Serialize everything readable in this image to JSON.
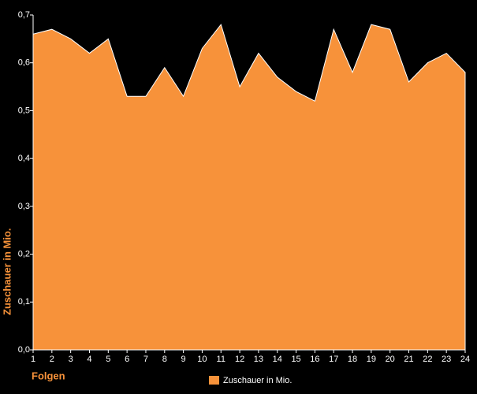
{
  "chart_data": {
    "type": "area",
    "x_label": "Folgen",
    "y_label": "Zuschauer in Mio.",
    "categories": [
      "1",
      "2",
      "3",
      "4",
      "5",
      "6",
      "7",
      "8",
      "9",
      "10",
      "11",
      "12",
      "13",
      "14",
      "15",
      "16",
      "17",
      "18",
      "19",
      "20",
      "21",
      "22",
      "23",
      "24"
    ],
    "series": [
      {
        "name": "Zuschauer in Mio.",
        "color": "#f7923a",
        "values": [
          0.66,
          0.67,
          0.65,
          0.62,
          0.65,
          0.53,
          0.53,
          0.59,
          0.53,
          0.63,
          0.68,
          0.55,
          0.62,
          0.57,
          0.54,
          0.52,
          0.67,
          0.58,
          0.68,
          0.67,
          0.56,
          0.6,
          0.62,
          0.58
        ]
      }
    ],
    "ylim": [
      0,
      0.7
    ],
    "yticks": [
      {
        "value": 0,
        "label": "0,0"
      },
      {
        "value": 0.1,
        "label": "0,1"
      },
      {
        "value": 0.2,
        "label": "0,2"
      },
      {
        "value": 0.3,
        "label": "0,3"
      },
      {
        "value": 0.4,
        "label": "0,4"
      },
      {
        "value": 0.5,
        "label": "0,5"
      },
      {
        "value": 0.6,
        "label": "0,6"
      },
      {
        "value": 0.7,
        "label": "0,7"
      }
    ],
    "legend": "bottom"
  }
}
